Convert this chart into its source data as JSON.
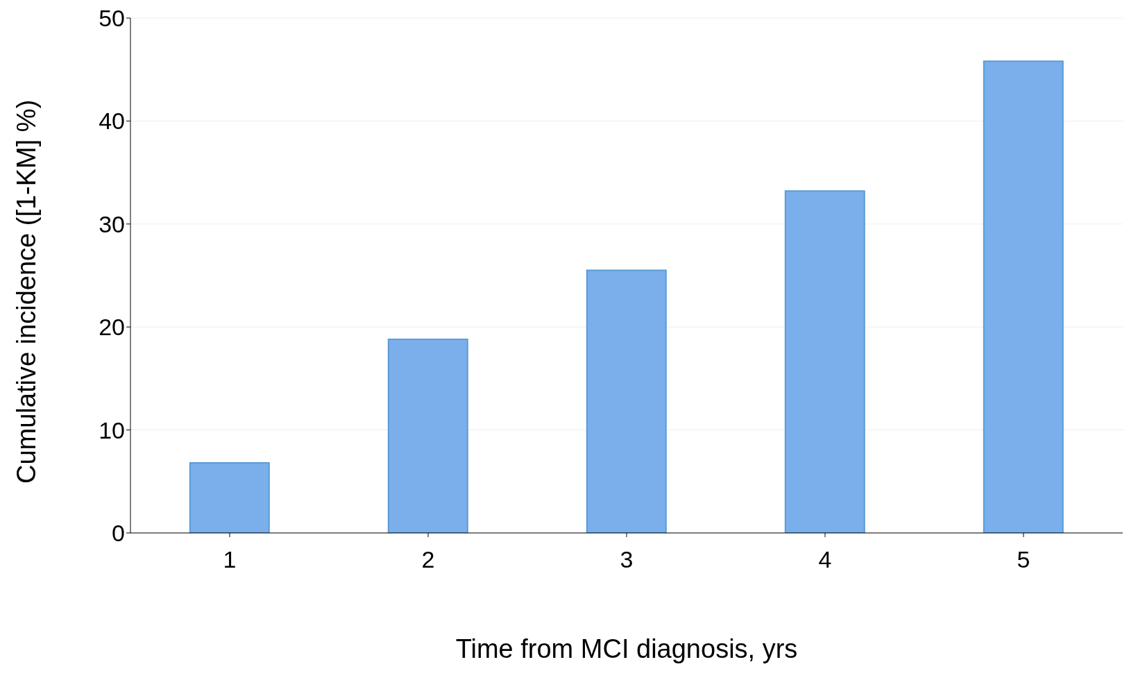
{
  "chart_data": {
    "type": "bar",
    "xlabel": "Time from MCI diagnosis, yrs",
    "ylabel": "Cumulative incidence ([1-KM] %)",
    "categories": [
      "1",
      "2",
      "3",
      "4",
      "5"
    ],
    "values": [
      6.8,
      18.8,
      25.5,
      33.2,
      45.8
    ],
    "color": "#7aafec",
    "ylim": [
      0,
      50
    ],
    "yticks": [
      0,
      10,
      20,
      30,
      40,
      50
    ],
    "grid": "y"
  }
}
